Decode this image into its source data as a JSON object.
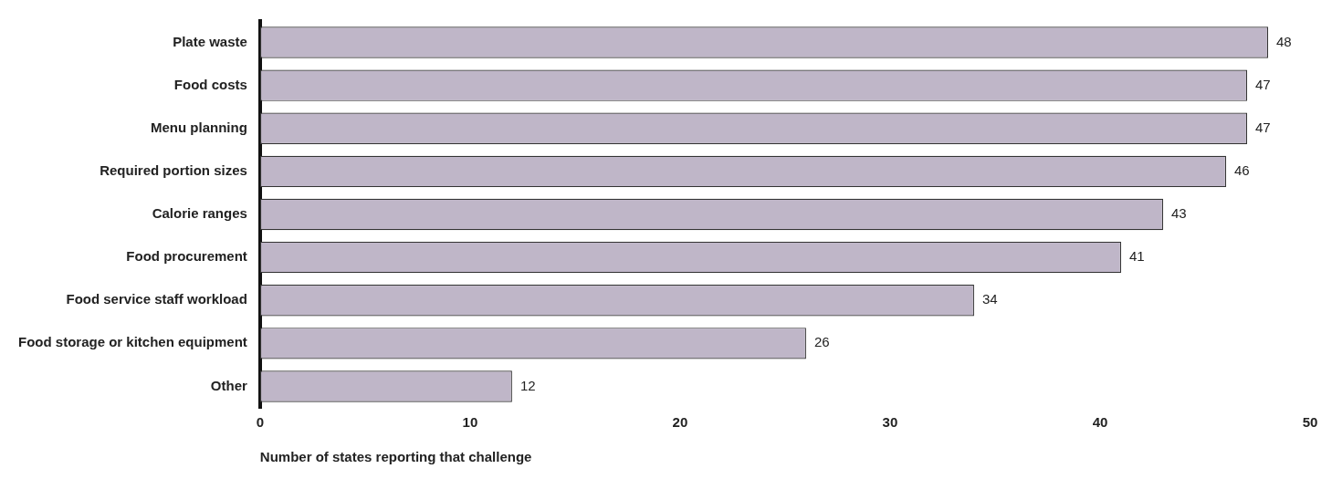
{
  "chart_data": {
    "type": "bar",
    "orientation": "horizontal",
    "xlabel": "Number of states reporting that challenge",
    "categories": [
      "Plate waste",
      "Food costs",
      "Menu planning",
      "Required portion sizes",
      "Calorie ranges",
      "Food procurement",
      "Food service staff workload",
      "Food storage or kitchen equipment",
      "Other"
    ],
    "values": [
      48,
      47,
      47,
      46,
      43,
      41,
      34,
      26,
      12
    ],
    "color": "#bfb6c8",
    "xlim": [
      0,
      50
    ],
    "xticks": [
      0,
      10,
      20,
      30,
      40,
      50
    ],
    "grid": false,
    "legend": false,
    "data_labels": true
  }
}
